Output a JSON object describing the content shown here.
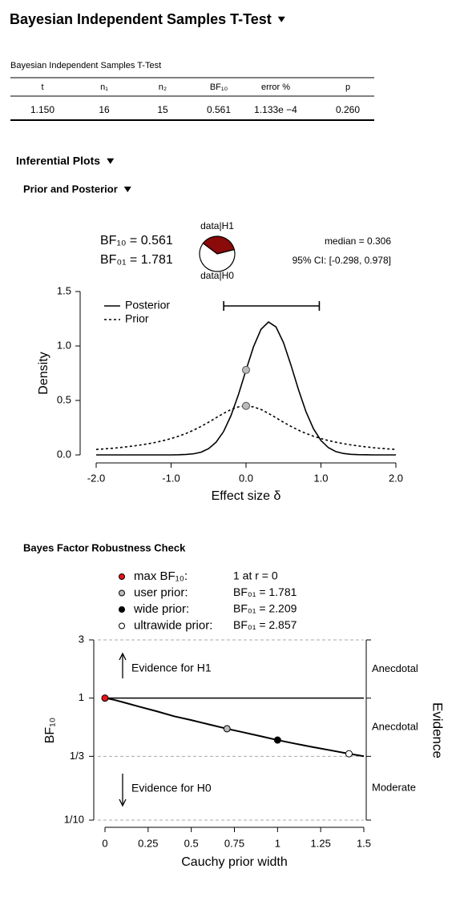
{
  "header": {
    "title": "Bayesian Independent Samples T-Test"
  },
  "table": {
    "caption": "Bayesian Independent Samples T-Test",
    "columns": [
      "t",
      "n₁",
      "n₂",
      "BF₁₀",
      "error %",
      "p"
    ],
    "rows": [
      [
        "1.150",
        "16",
        "15",
        "0.561",
        "1.133e −4",
        "0.260"
      ]
    ]
  },
  "sections": {
    "inferential": "Inferential Plots",
    "prior_posterior": "Prior and Posterior",
    "robustness": "Bayes Factor Robustness Check"
  },
  "chart_data": [
    {
      "type": "line",
      "xlabel": "Effect size δ",
      "ylabel": "Density",
      "legend": "top-left",
      "x": [
        -2.0,
        -1.9,
        -1.8,
        -1.7,
        -1.6,
        -1.5,
        -1.4,
        -1.3,
        -1.2,
        -1.1,
        -1.0,
        -0.9,
        -0.8,
        -0.7,
        -0.6,
        -0.5,
        -0.4,
        -0.3,
        -0.2,
        -0.1,
        0,
        0.1,
        0.2,
        0.3,
        0.4,
        0.5,
        0.6,
        0.7,
        0.8,
        0.9,
        1.0,
        1.1,
        1.2,
        1.3,
        1.4,
        1.5,
        1.6,
        1.7,
        1.8,
        1.9,
        2.0
      ],
      "series": [
        {
          "name": "Posterior",
          "color": "#000000",
          "dash": "solid",
          "values": [
            0,
            0,
            0,
            0,
            0,
            0,
            0,
            0,
            0,
            0,
            0,
            0.001,
            0.004,
            0.01,
            0.025,
            0.057,
            0.116,
            0.214,
            0.362,
            0.556,
            0.779,
            0.993,
            1.153,
            1.22,
            1.175,
            1.031,
            0.824,
            0.599,
            0.397,
            0.24,
            0.132,
            0.066,
            0.03,
            0.013,
            0.005,
            0.002,
            0.001,
            0,
            0,
            0,
            0
          ]
        },
        {
          "name": "Prior",
          "color": "#000000",
          "dash": "dotted",
          "values": [
            0.05,
            0.055,
            0.06,
            0.066,
            0.074,
            0.082,
            0.092,
            0.103,
            0.116,
            0.132,
            0.15,
            0.172,
            0.197,
            0.227,
            0.262,
            0.3,
            0.341,
            0.381,
            0.417,
            0.441,
            0.45,
            0.441,
            0.417,
            0.381,
            0.341,
            0.3,
            0.262,
            0.227,
            0.197,
            0.172,
            0.15,
            0.132,
            0.116,
            0.103,
            0.092,
            0.082,
            0.074,
            0.066,
            0.06,
            0.055,
            0.05
          ]
        }
      ],
      "points": {
        "x": [
          0,
          0
        ],
        "y": [
          0.78,
          0.45
        ],
        "color": "#bbbbbb"
      },
      "xlim": [
        -2,
        2
      ],
      "ylim": [
        0,
        1.5
      ],
      "xticks": [
        {
          "value": -2,
          "label": "-2.0"
        },
        {
          "value": -1,
          "label": "-1.0"
        },
        {
          "value": 0,
          "label": "0.0"
        },
        {
          "value": 1,
          "label": "1.0"
        },
        {
          "value": 2,
          "label": "2.0"
        }
      ],
      "yticks": [
        {
          "value": 0,
          "label": "0.0"
        },
        {
          "value": 0.5,
          "label": "0.5"
        },
        {
          "value": 1,
          "label": "1.0"
        },
        {
          "value": 1.5,
          "label": "1.5"
        }
      ],
      "bf_labels": [
        "BF₁₀ = 0.561",
        "BF₀₁ = 1.781"
      ],
      "pie": {
        "labels": [
          "data|H1",
          "data|H0"
        ],
        "values": [
          0.359,
          0.641
        ],
        "colors": [
          "#8b0a0a",
          "#ffffff"
        ]
      },
      "median_label": "median = 0.306",
      "ci_label": "95% CI: [-0.298, 0.978]",
      "ci": [
        -0.298,
        0.978
      ]
    },
    {
      "type": "line",
      "log_y": true,
      "grid": true,
      "baseline": 1,
      "xlabel": "Cauchy prior width",
      "ylabel": "BF₁₀",
      "right_label": "Evidence",
      "x": [
        0,
        0.05,
        0.1,
        0.2,
        0.3,
        0.4,
        0.5,
        0.6,
        0.707,
        0.8,
        0.9,
        1,
        1.1,
        1.2,
        1.3,
        1.414,
        1.5
      ],
      "series": [
        {
          "color": "#000000",
          "values": [
            1,
            0.97,
            0.93,
            0.85,
            0.78,
            0.71,
            0.66,
            0.61,
            0.561,
            0.525,
            0.488,
            0.453,
            0.424,
            0.398,
            0.375,
            0.35,
            0.334
          ]
        }
      ],
      "points": [
        {
          "name": "max BF₁₀:",
          "note": "1 at r = 0",
          "x": 0,
          "y": 1,
          "color": "#e8141a"
        },
        {
          "name": "user prior:",
          "note": "BF₀₁ = 1.781",
          "x": 0.707,
          "y": 0.561,
          "color": "#bbbbbb"
        },
        {
          "name": "wide prior:",
          "note": "BF₀₁ = 2.209",
          "x": 1,
          "y": 0.453,
          "color": "#000000"
        },
        {
          "name": "ultrawide prior:",
          "note": "BF₀₁ = 2.857",
          "x": 1.414,
          "y": 0.35,
          "color": "#ffffff"
        }
      ],
      "xlim": [
        0,
        1.5
      ],
      "ylim": [
        0.1,
        3
      ],
      "xticks": [
        0,
        0.25,
        0.5,
        0.75,
        1,
        1.25,
        1.5
      ],
      "yticks": [
        {
          "value": 0.1,
          "label": "1/10"
        },
        {
          "value": 0.3333,
          "label": "1/3"
        },
        1,
        3
      ],
      "evidence_labels": [
        "Moderate",
        "Anecdotal",
        "Anecdotal"
      ],
      "evidence_h1": "Evidence for H1",
      "evidence_h0": "Evidence for H0"
    }
  ]
}
